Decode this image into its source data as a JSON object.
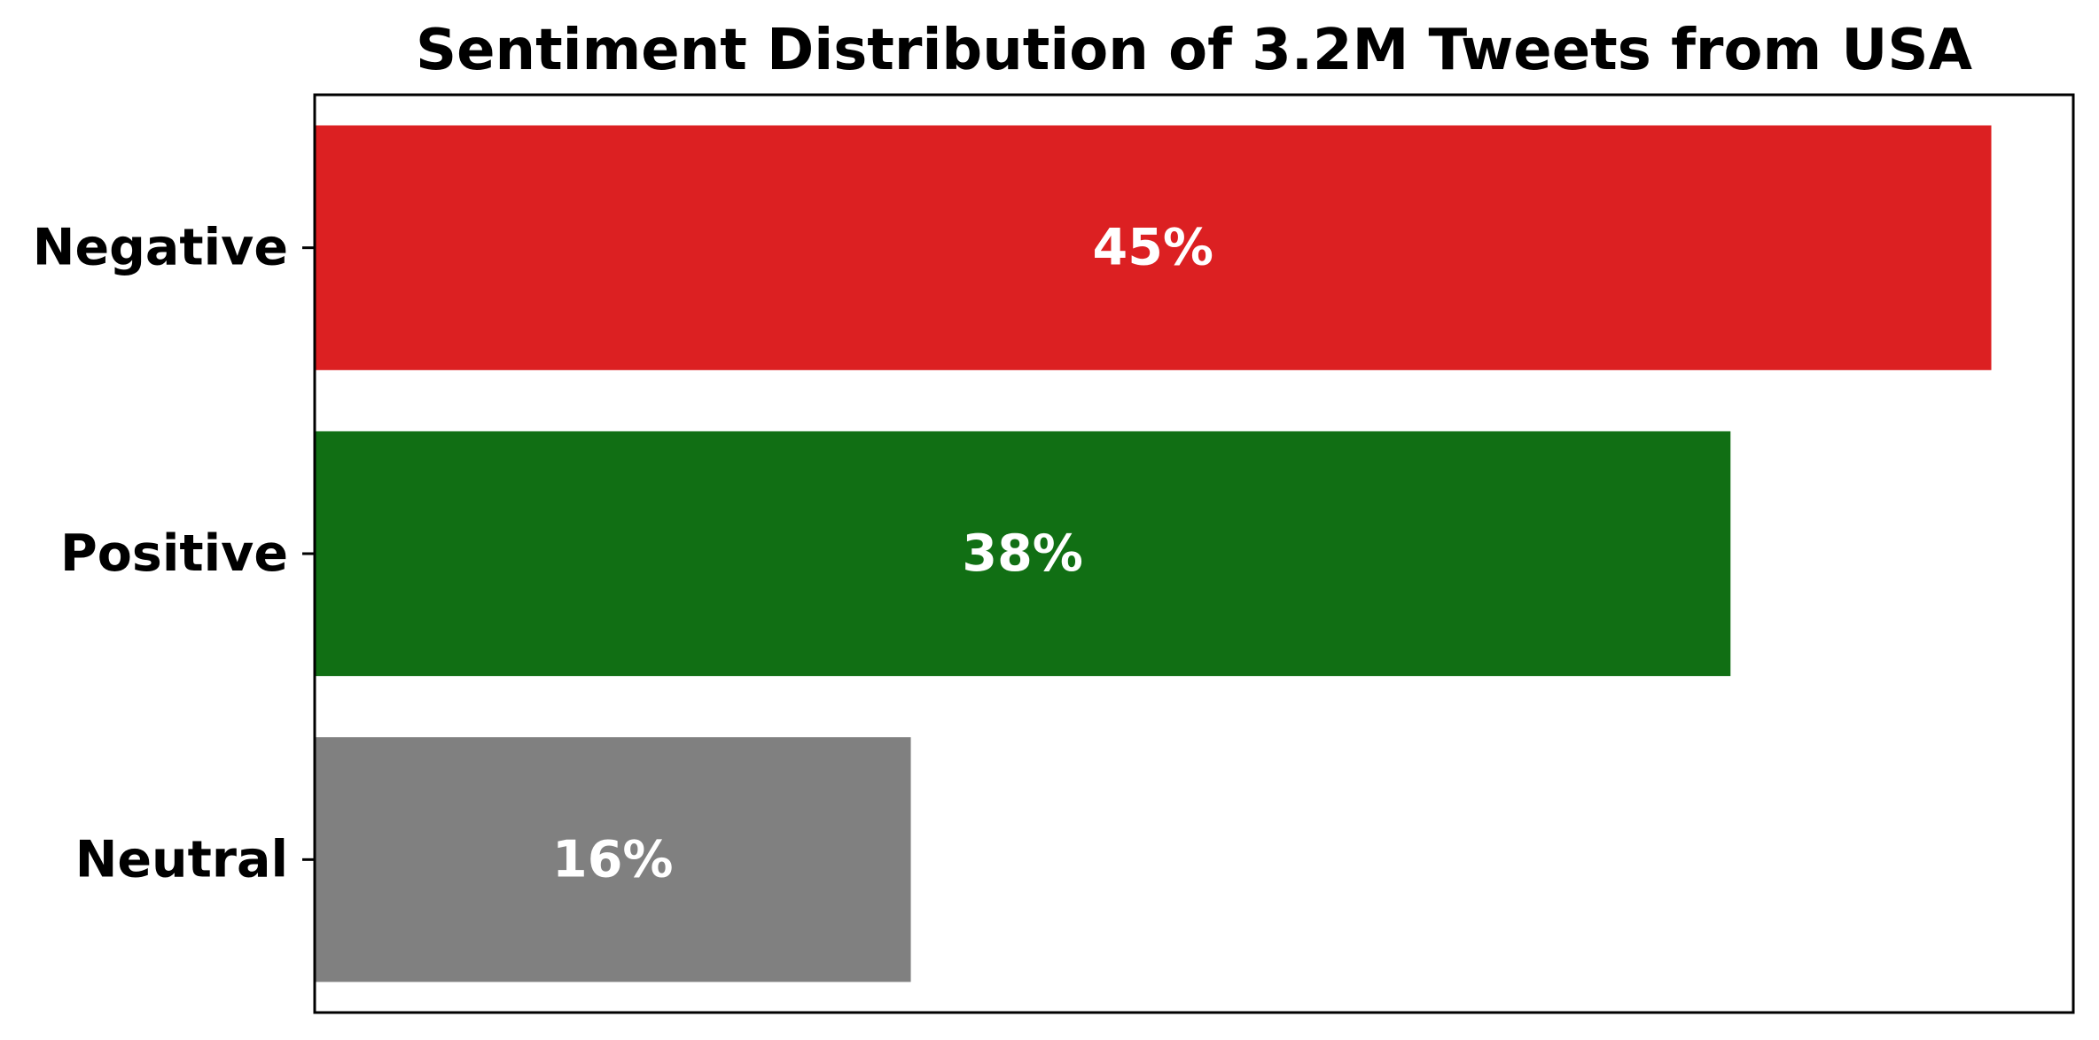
{
  "chart_data": {
    "type": "bar",
    "orientation": "horizontal",
    "title": "Sentiment Distribution of 3.2M Tweets from USA",
    "categories": [
      "Negative",
      "Positive",
      "Neutral"
    ],
    "values": [
      45,
      38,
      16
    ],
    "data_labels": [
      "45%",
      "38%",
      "16%"
    ],
    "colors": [
      "#dc2022",
      "#116f14",
      "#808080"
    ],
    "xlabel": "",
    "ylabel": "",
    "xlim": [
      0,
      47.2
    ],
    "x_axis_ticks_visible": false,
    "grid": false,
    "legend": "none"
  }
}
